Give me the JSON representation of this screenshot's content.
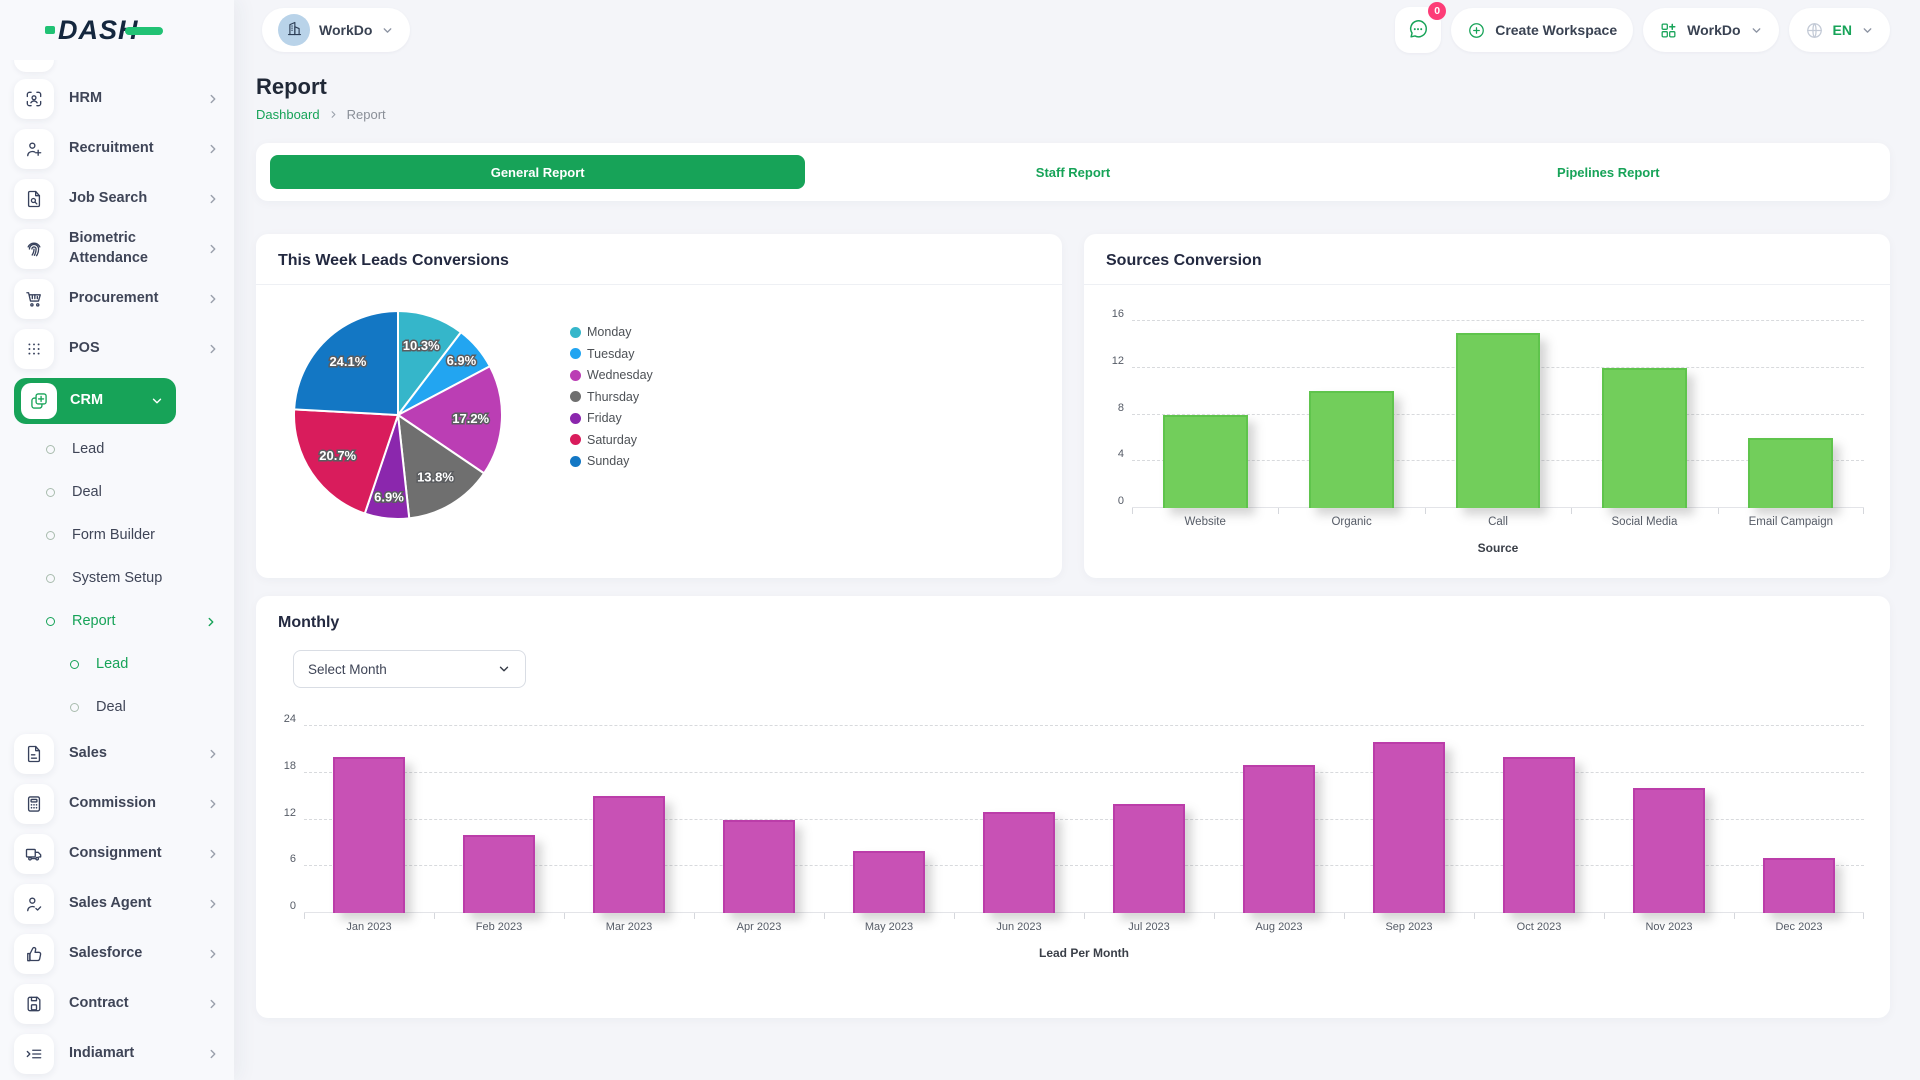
{
  "header": {
    "logo": "DASH",
    "workspace_name": "WorkDo",
    "messages_badge": "0",
    "create_workspace_label": "Create Workspace",
    "switcher_name": "WorkDo",
    "language": "EN"
  },
  "page": {
    "title": "Report",
    "breadcrumb_home": "Dashboard",
    "breadcrumb_current": "Report"
  },
  "tabs": [
    {
      "label": "General Report",
      "active": true
    },
    {
      "label": "Staff Report",
      "active": false
    },
    {
      "label": "Pipelines Report",
      "active": false
    }
  ],
  "sidebar": {
    "items": [
      {
        "type": "item",
        "icon": "hrm-icon",
        "label": "HRM"
      },
      {
        "type": "item",
        "icon": "recruitment-icon",
        "label": "Recruitment"
      },
      {
        "type": "item",
        "icon": "job-search-icon",
        "label": "Job Search"
      },
      {
        "type": "item",
        "icon": "biometric-icon",
        "label": "Biometric Attendance"
      },
      {
        "type": "item",
        "icon": "procurement-icon",
        "label": "Procurement"
      },
      {
        "type": "item",
        "icon": "pos-icon",
        "label": "POS"
      },
      {
        "type": "item",
        "icon": "crm-icon",
        "label": "CRM",
        "active": true,
        "expanded": true
      },
      {
        "type": "sub",
        "label": "Lead"
      },
      {
        "type": "sub",
        "label": "Deal"
      },
      {
        "type": "sub",
        "label": "Form Builder"
      },
      {
        "type": "sub",
        "label": "System Setup"
      },
      {
        "type": "sub",
        "label": "Report",
        "active": true,
        "chevron": true
      },
      {
        "type": "sub2",
        "label": "Lead",
        "active": true
      },
      {
        "type": "sub2",
        "label": "Deal"
      },
      {
        "type": "item",
        "icon": "sales-icon",
        "label": "Sales"
      },
      {
        "type": "item",
        "icon": "commission-icon",
        "label": "Commission"
      },
      {
        "type": "item",
        "icon": "consignment-icon",
        "label": "Consignment"
      },
      {
        "type": "item",
        "icon": "sales-agent-icon",
        "label": "Sales Agent"
      },
      {
        "type": "item",
        "icon": "salesforce-icon",
        "label": "Salesforce"
      },
      {
        "type": "item",
        "icon": "contract-icon",
        "label": "Contract"
      },
      {
        "type": "item",
        "icon": "indiamart-icon",
        "label": "Indiamart"
      }
    ]
  },
  "cards": {
    "pie_title": "This Week Leads Conversions",
    "sources_title": "Sources Conversion",
    "monthly_title": "Monthly",
    "select_month": "Select Month"
  },
  "colors": {
    "primary_green": "#17a358",
    "logo_accent": "#21c274",
    "badge_pink": "#fd3c77",
    "sources_bar": "#72ce5b",
    "sources_bar_border": "#5fc44c",
    "monthly_bar": "#c851b5",
    "monthly_bar_border": "#bb3da9"
  },
  "chart_data": [
    {
      "type": "pie",
      "title": "This Week Leads Conversions",
      "labels": [
        "Monday",
        "Tuesday",
        "Wednesday",
        "Thursday",
        "Friday",
        "Saturday",
        "Sunday"
      ],
      "values": [
        3,
        2,
        5,
        4,
        2,
        6,
        7
      ],
      "percent_labels": [
        "10.3%",
        "6.9%",
        "17.2%",
        "13.8%",
        "6.9%",
        "20.7%",
        "24.1%"
      ],
      "colors": [
        "#35b6ca",
        "#22a5f1",
        "#bb3eb4",
        "#6f6f6f",
        "#8b27ad",
        "#d91c5c",
        "#1377c4"
      ],
      "legend_position": "right",
      "start_angle_deg": 0
    },
    {
      "type": "bar",
      "title": "Sources Conversion",
      "categories": [
        "Website",
        "Organic",
        "Call",
        "Social Media",
        "Email Campaign"
      ],
      "values": [
        8,
        10,
        15,
        12,
        6
      ],
      "xlabel": "Source",
      "ylabel": "",
      "ylim": [
        0,
        16
      ],
      "yticks": [
        0,
        4,
        8,
        12,
        16
      ],
      "grid": "dashed",
      "bar_color": "#72ce5b"
    },
    {
      "type": "bar",
      "title": "Monthly",
      "categories": [
        "Jan 2023",
        "Feb 2023",
        "Mar 2023",
        "Apr 2023",
        "May 2023",
        "Jun 2023",
        "Jul 2023",
        "Aug 2023",
        "Sep 2023",
        "Oct 2023",
        "Nov 2023",
        "Dec 2023"
      ],
      "values": [
        20,
        10,
        15,
        12,
        8,
        13,
        14,
        19,
        22,
        20,
        16,
        7
      ],
      "xlabel": "Lead Per Month",
      "ylabel": "",
      "ylim": [
        0,
        24
      ],
      "yticks": [
        0,
        6,
        12,
        18,
        24
      ],
      "grid": "dashed",
      "bar_color": "#c851b5"
    }
  ]
}
